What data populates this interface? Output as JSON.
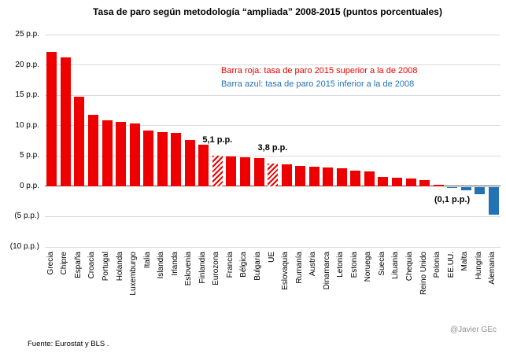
{
  "title": "Tasa de paro según metodología “ampliada” 2008-2015 (puntos porcentuales)",
  "legend": {
    "red": "Barra roja: tasa de paro 2015 superior a la de 2008",
    "blue": "Barra azul: tasa de paro 2015 inferior a la de 2008"
  },
  "footer": {
    "source": "Fuente: Eurostat y BLS .",
    "credit": "@Javier GEc"
  },
  "colors": {
    "red": "#ee0000",
    "blue": "#2272b4",
    "grid": "#d9d9d9",
    "axis": "#4d4d4d",
    "credit": "#909090"
  },
  "chart_data": {
    "type": "bar",
    "title": "Tasa de paro según metodología “ampliada” 2008-2015 (puntos porcentuales)",
    "ylim": [
      -10,
      25
    ],
    "grid": true,
    "yticks": [
      {
        "value": 25,
        "label": "25 p.p."
      },
      {
        "value": 20,
        "label": "20 p.p."
      },
      {
        "value": 15,
        "label": "15 p.p."
      },
      {
        "value": 10,
        "label": "10 p.p."
      },
      {
        "value": 5,
        "label": "5 p.p."
      },
      {
        "value": 0,
        "label": "0 p.p."
      },
      {
        "value": -5,
        "label": "(5 p.p.)"
      },
      {
        "value": -10,
        "label": "(10 p.p.)"
      }
    ],
    "categories": [
      "Grecia",
      "Chipre",
      "España",
      "Croacia",
      "Portugal",
      "Holanda",
      "Luxemburgo",
      "Italia",
      "Islandia",
      "Irlanda",
      "Eslovenia",
      "Finlandia",
      "Eurozona",
      "Francia",
      "Bélgica",
      "Bulgaria",
      "UE",
      "Eslovaquia",
      "Rumanía",
      "Austria",
      "Dinamarca",
      "Letonia",
      "Estonia",
      "Noruega",
      "Suecia",
      "Lituania",
      "Chequia",
      "Reino Unido",
      "Polonia",
      "EE.UU.",
      "Malta",
      "Hungría",
      "Alemania"
    ],
    "values": [
      22.2,
      21.3,
      14.8,
      11.8,
      10.9,
      10.6,
      10.4,
      9.2,
      8.9,
      8.8,
      7.7,
      6.9,
      5.1,
      4.9,
      4.8,
      4.7,
      3.8,
      3.6,
      3.3,
      3.2,
      3.1,
      3.0,
      2.6,
      2.4,
      1.6,
      1.4,
      1.3,
      1.0,
      0.2,
      -0.1,
      -0.6,
      -1.2,
      -4.5
    ],
    "hatched": [
      "Eurozona",
      "UE"
    ],
    "annotations": [
      {
        "text": "5,1 p.p.",
        "category": "Eurozona"
      },
      {
        "text": "3,8 p.p.",
        "category": "UE"
      },
      {
        "text": "(0,1 p.p.)",
        "category": "EE.UU."
      }
    ]
  }
}
